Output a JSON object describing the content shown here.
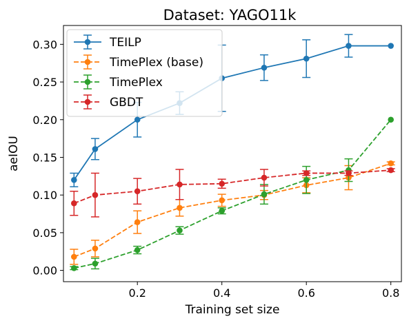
{
  "chart_data": {
    "type": "line",
    "title": "Dataset: YAGO11k",
    "xlabel": "Training set size",
    "ylabel": "aeIOU",
    "xlim": [
      0.025,
      0.825
    ],
    "ylim": [
      -0.015,
      0.325
    ],
    "xticks": [
      0.2,
      0.4,
      0.6,
      0.8
    ],
    "xtick_labels": [
      "0.2",
      "0.4",
      "0.6",
      "0.8"
    ],
    "yticks": [
      0.0,
      0.05,
      0.1,
      0.15,
      0.2,
      0.25,
      0.3
    ],
    "ytick_labels": [
      "0.00",
      "0.05",
      "0.10",
      "0.15",
      "0.20",
      "0.25",
      "0.30"
    ],
    "grid": false,
    "legend_position": "top-left",
    "series": [
      {
        "name": "TEILP",
        "color": "#1f77b4",
        "dashed": false,
        "x": [
          0.05,
          0.1,
          0.2,
          0.3,
          0.4,
          0.5,
          0.6,
          0.7,
          0.8
        ],
        "y": [
          0.12,
          0.161,
          0.2,
          0.222,
          0.255,
          0.269,
          0.281,
          0.298,
          0.298
        ],
        "err": [
          0.009,
          0.014,
          0.023,
          0.015,
          0.044,
          0.017,
          0.025,
          0.015,
          0.0
        ]
      },
      {
        "name": "TimePlex (base)",
        "color": "#ff7f0e",
        "dashed": true,
        "x": [
          0.05,
          0.1,
          0.2,
          0.3,
          0.4,
          0.5,
          0.6,
          0.7,
          0.8
        ],
        "y": [
          0.018,
          0.029,
          0.064,
          0.083,
          0.093,
          0.1,
          0.113,
          0.123,
          0.142
        ],
        "err": [
          0.01,
          0.011,
          0.015,
          0.011,
          0.008,
          0.006,
          0.01,
          0.016,
          0.002
        ]
      },
      {
        "name": "TimePlex",
        "color": "#2ca02c",
        "dashed": true,
        "x": [
          0.05,
          0.1,
          0.2,
          0.3,
          0.4,
          0.5,
          0.6,
          0.7,
          0.8
        ],
        "y": [
          0.003,
          0.009,
          0.027,
          0.053,
          0.079,
          0.101,
          0.12,
          0.133,
          0.2
        ],
        "err": [
          0.002,
          0.007,
          0.005,
          0.005,
          0.004,
          0.013,
          0.018,
          0.015,
          0.0
        ]
      },
      {
        "name": "GBDT",
        "color": "#d62728",
        "dashed": true,
        "x": [
          0.05,
          0.1,
          0.2,
          0.3,
          0.4,
          0.5,
          0.6,
          0.7,
          0.8
        ],
        "y": [
          0.089,
          0.1,
          0.105,
          0.114,
          0.115,
          0.123,
          0.129,
          0.129,
          0.133
        ],
        "err": [
          0.016,
          0.029,
          0.017,
          0.02,
          0.006,
          0.011,
          0.003,
          0.003,
          0.002
        ]
      }
    ]
  }
}
